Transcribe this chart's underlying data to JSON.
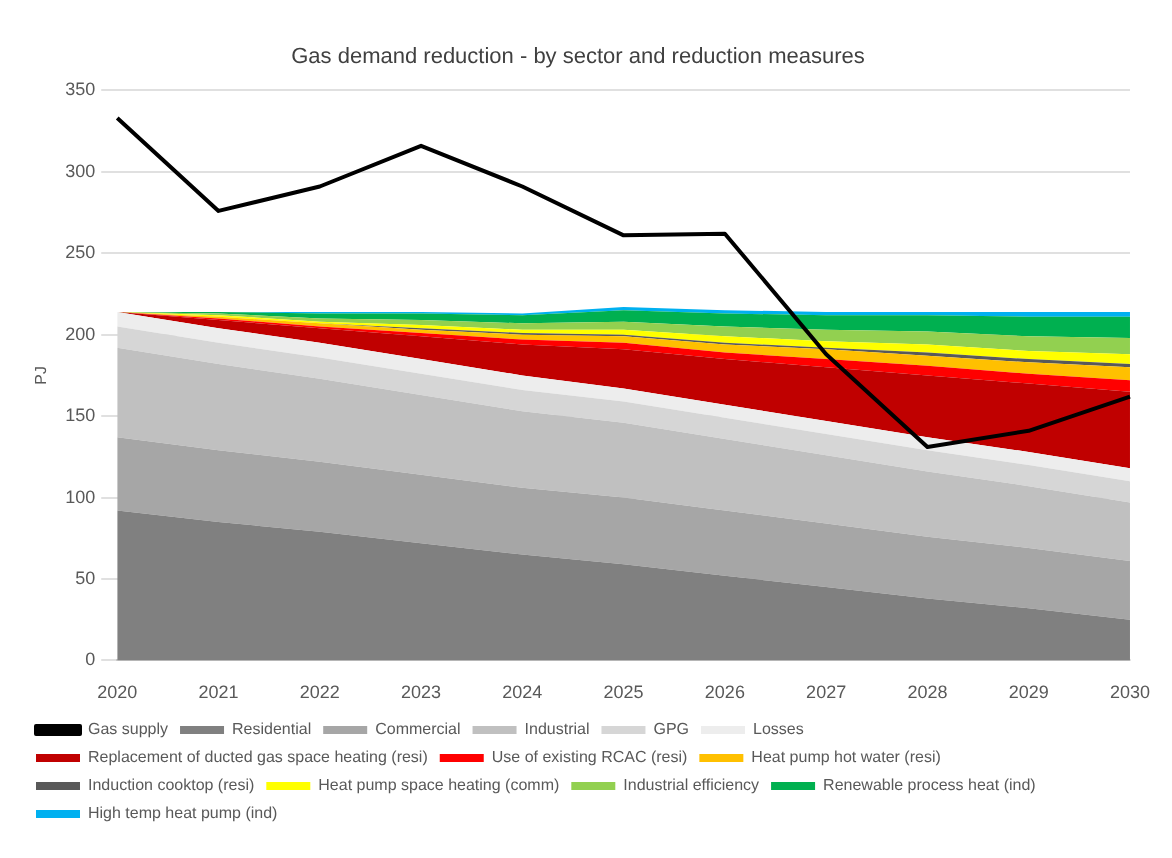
{
  "chart_data": {
    "type": "area",
    "title": "Gas demand reduction - by sector and reduction measures",
    "ylabel": "PJ",
    "stacked": true,
    "categories": [
      "2020",
      "2021",
      "2022",
      "2023",
      "2024",
      "2025",
      "2026",
      "2027",
      "2028",
      "2029",
      "2030"
    ],
    "ylim": [
      0,
      350
    ],
    "yticks": [
      0,
      50,
      100,
      150,
      200,
      250,
      300,
      350
    ],
    "grid": "y",
    "legend": "bottom",
    "marker": "none",
    "series": [
      {
        "name": "Residential",
        "color": "#808080",
        "values": [
          92,
          85,
          79,
          72,
          65,
          59,
          52,
          45,
          38,
          32,
          25
        ]
      },
      {
        "name": "Commercial",
        "color": "#a6a6a6",
        "values": [
          45,
          44,
          43,
          42,
          41,
          41,
          40,
          39,
          38,
          37,
          36
        ]
      },
      {
        "name": "Industrial",
        "color": "#c0c0c0",
        "values": [
          55,
          53,
          51,
          49,
          47,
          46,
          44,
          42,
          40,
          38,
          36
        ]
      },
      {
        "name": "GPG",
        "color": "#d6d6d6",
        "values": [
          13,
          13,
          13,
          13,
          13,
          13,
          13,
          13,
          13,
          13,
          13
        ]
      },
      {
        "name": "Losses",
        "color": "#ededed",
        "values": [
          9,
          9,
          9,
          9,
          9,
          8,
          8,
          8,
          8,
          8,
          8
        ]
      },
      {
        "name": "Replacement of ducted gas space heating (resi)",
        "color": "#c00000",
        "values": [
          0,
          5,
          9,
          14,
          19,
          24,
          28,
          33,
          38,
          42,
          47
        ]
      },
      {
        "name": "Use of existing RCAC (resi)",
        "color": "#ff0000",
        "values": [
          0,
          1,
          1,
          2,
          3,
          4,
          4,
          5,
          6,
          6,
          7
        ]
      },
      {
        "name": "Heat pump hot water (resi)",
        "color": "#ffc000",
        "values": [
          0,
          1,
          2,
          2,
          3,
          4,
          5,
          6,
          6,
          7,
          8
        ]
      },
      {
        "name": "Induction cooktop (resi)",
        "color": "#595959",
        "values": [
          0,
          0,
          0,
          1,
          1,
          1,
          1,
          1,
          2,
          2,
          2
        ]
      },
      {
        "name": "Heat pump space heating (comm)",
        "color": "#ffff00",
        "values": [
          0,
          1,
          1,
          2,
          2,
          3,
          4,
          4,
          5,
          5,
          6
        ]
      },
      {
        "name": "Industrial efficiency",
        "color": "#92d050",
        "values": [
          0,
          1,
          2,
          3,
          4,
          5,
          6,
          7,
          8,
          9,
          10
        ]
      },
      {
        "name": "Renewable process heat (ind)",
        "color": "#00b050",
        "values": [
          0,
          1,
          3,
          4,
          5,
          7,
          8,
          9,
          10,
          12,
          13
        ]
      },
      {
        "name": "High temp heat pump (ind)",
        "color": "#00b0f0",
        "values": [
          0,
          0,
          1,
          1,
          1,
          2,
          2,
          2,
          2,
          3,
          3
        ]
      },
      {
        "name": "Gas supply",
        "type": "line",
        "color": "#000000",
        "values": [
          333,
          276,
          291,
          316,
          291,
          261,
          262,
          188,
          131,
          141,
          162
        ]
      }
    ]
  }
}
